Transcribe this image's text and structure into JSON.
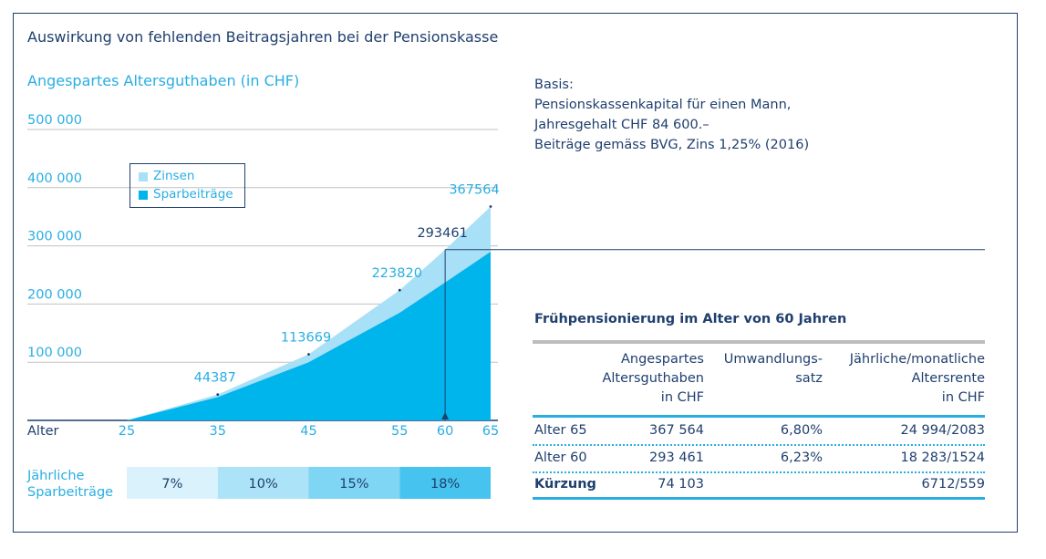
{
  "title": "Auswirkung von fehlenden Beitragsjahren bei der Pensionskasse",
  "chart_data": {
    "type": "area",
    "title": "Angespartes Altersguthaben (in CHF)",
    "xlabel": "Alter",
    "ylabel": "",
    "ylim": [
      0,
      500000
    ],
    "y_tick_labels": [
      "100 000",
      "200 000",
      "300 000",
      "400 000",
      "500 000"
    ],
    "y_ticks": [
      100000,
      200000,
      300000,
      400000,
      500000
    ],
    "x_ticks": [
      25,
      35,
      45,
      55,
      60,
      65
    ],
    "x_tick_labels": [
      "25",
      "35",
      "45",
      "55",
      "60",
      "65"
    ],
    "x": [
      25,
      35,
      45,
      55,
      60,
      65
    ],
    "series": [
      {
        "name": "Zinsen",
        "color": "#a8e0f7",
        "values": [
          0,
          44387,
          113669,
          223820,
          293461,
          367564
        ]
      },
      {
        "name": "Sparbeiträge",
        "color": "#00b4ec",
        "values": [
          0,
          40000,
          100000,
          185000,
          237000,
          290000
        ]
      }
    ],
    "data_labels": [
      {
        "x": 35,
        "y": 44387,
        "text": "44387",
        "color": "#29aee3"
      },
      {
        "x": 45,
        "y": 113669,
        "text": "113669",
        "color": "#29aee3"
      },
      {
        "x": 55,
        "y": 223820,
        "text": "223820",
        "color": "#29aee3"
      },
      {
        "x": 60,
        "y": 293461,
        "text": "293461",
        "color": "#1f3f6e"
      },
      {
        "x": 65,
        "y": 367564,
        "text": "367564",
        "color": "#29aee3"
      }
    ],
    "marker": {
      "x": 60,
      "y": 293461
    },
    "legend_position": "top-left",
    "grid": true
  },
  "contribution_rates": {
    "label": "Jährliche\nSparbeiträge",
    "bands": [
      {
        "from": 25,
        "to": 35,
        "text": "7%",
        "color": "#d9f2fc"
      },
      {
        "from": 35,
        "to": 45,
        "text": "10%",
        "color": "#ade3f8"
      },
      {
        "from": 45,
        "to": 55,
        "text": "15%",
        "color": "#7fd5f4"
      },
      {
        "from": 55,
        "to": 65,
        "text": "18%",
        "color": "#46c3ef"
      }
    ]
  },
  "basis": {
    "line1": "Basis:",
    "line2": "Pensionskassenkapital für einen Mann,",
    "line3": "Jahresgehalt CHF 84 600.–",
    "line4": "Beiträge gemäss BVG, Zins 1,25% (2016)"
  },
  "table": {
    "title": "Frühpensionierung im Alter von 60 Jahren",
    "headers": {
      "col1": "Angespartes\nAltersguthaben\nin CHF",
      "col2": "Umwandlungs-\nsatz",
      "col3": "Jährliche/monatliche\nAltersrente\nin CHF"
    },
    "rows": [
      {
        "label": "Alter 65",
        "capital": "367 564",
        "rate": "6,80%",
        "pension": "24 994/2083"
      },
      {
        "label": "Alter 60",
        "capital": "293 461",
        "rate": "6,23%",
        "pension": "18 283/1524"
      },
      {
        "label": "Kürzung",
        "capital": "74 103",
        "rate": "",
        "pension": "6712/559"
      }
    ]
  }
}
